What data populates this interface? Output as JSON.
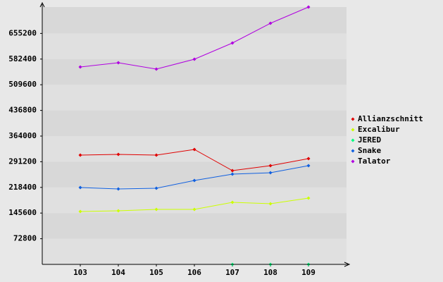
{
  "chart_data": {
    "type": "line",
    "categories": [
      "103",
      "104",
      "105",
      "106",
      "107",
      "108",
      "109"
    ],
    "series": [
      {
        "name": "Allianzschnitt",
        "color": "#e00000",
        "values": [
          310000,
          312000,
          310000,
          326000,
          266000,
          280000,
          300000
        ]
      },
      {
        "name": "Excalibur",
        "color": "#ccff00",
        "values": [
          150000,
          152000,
          156000,
          156000,
          176000,
          172000,
          188000
        ]
      },
      {
        "name": "JERED",
        "color": "#00ff80",
        "values": [
          null,
          null,
          null,
          null,
          0,
          0,
          0
        ]
      },
      {
        "name": "Snake",
        "color": "#1060e0",
        "values": [
          218000,
          214000,
          216000,
          238000,
          256000,
          260000,
          280000
        ]
      },
      {
        "name": "Talator",
        "color": "#b000e0",
        "values": [
          560000,
          572000,
          554000,
          582000,
          628000,
          684000,
          730000
        ]
      }
    ],
    "ylim": [
      0,
      730000
    ],
    "yticks": [
      72800,
      145600,
      218400,
      291200,
      364000,
      436800,
      509600,
      582400,
      655200
    ],
    "grid": true,
    "legend": "right"
  }
}
